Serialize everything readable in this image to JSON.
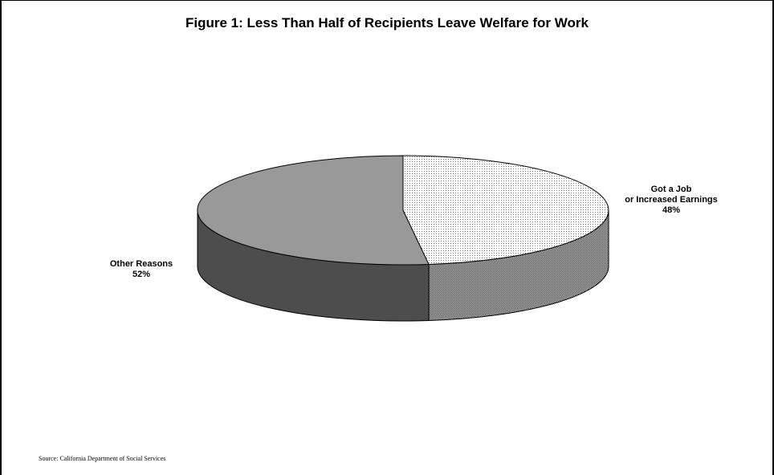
{
  "chart_data": {
    "type": "pie",
    "title": "Figure 1: Less Than Half of Recipients Leave Welfare for Work",
    "slices": [
      {
        "label_lines": [
          "Got a Job",
          "or Increased Earnings"
        ],
        "value": 48,
        "value_label": "48%",
        "color": "#ffffff",
        "pattern": "dotted"
      },
      {
        "label_lines": [
          "Other Reasons"
        ],
        "value": 52,
        "value_label": "52%",
        "color": "#999999",
        "pattern": "solid"
      }
    ],
    "style": "3d",
    "legend": "none"
  },
  "source": "Source: California Department of Social Services",
  "colors": {
    "other_top": "#999999",
    "other_side": "#4d4d4d",
    "job_top": "#ffffff",
    "job_side": "#8c8c8c",
    "outline": "#000000"
  }
}
